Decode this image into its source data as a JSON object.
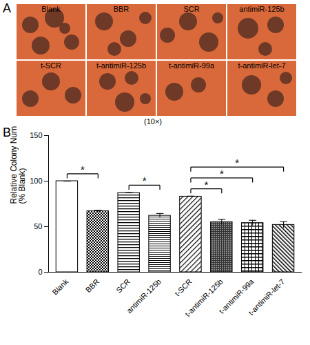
{
  "figure": {
    "panel_a": {
      "panel_label": "A",
      "images": [
        "Blank",
        "BBR",
        "SCR",
        "antimiR-125b",
        "t-SCR",
        "t-antimiR-125b",
        "t-antimiR-99a",
        "t-antimiR-let-7"
      ],
      "caption": "(10×)"
    }
  },
  "chart_data": {
    "type": "bar",
    "panel_label": "B",
    "y_label": "Relative Colony Number\n(% Blank)",
    "categories": [
      "Blank",
      "BBR",
      "SCR",
      "antimiR-125b",
      "t-SCR",
      "t-antimiR-125b",
      "t-antimiR-99a",
      "t-antimiR-let-7"
    ],
    "values": [
      100,
      67,
      87,
      62,
      83,
      55,
      54,
      52
    ],
    "errors": [
      0,
      1,
      0.5,
      2.5,
      0.5,
      3,
      3,
      3.5
    ],
    "color": "#000000",
    "ylim": [
      0,
      150
    ],
    "yticks": [
      0,
      50,
      100,
      150
    ],
    "significance": [
      {
        "from": "Blank",
        "to": "BBR",
        "label": "*"
      },
      {
        "from": "SCR",
        "to": "antimiR-125b",
        "label": "*"
      },
      {
        "from": "t-SCR",
        "to": "t-antimiR-125b",
        "label": "*"
      },
      {
        "from": "t-SCR",
        "to": "t-antimiR-99a",
        "label": "*"
      },
      {
        "from": "t-SCR",
        "to": "t-antimiR-let-7",
        "label": "*"
      }
    ]
  }
}
